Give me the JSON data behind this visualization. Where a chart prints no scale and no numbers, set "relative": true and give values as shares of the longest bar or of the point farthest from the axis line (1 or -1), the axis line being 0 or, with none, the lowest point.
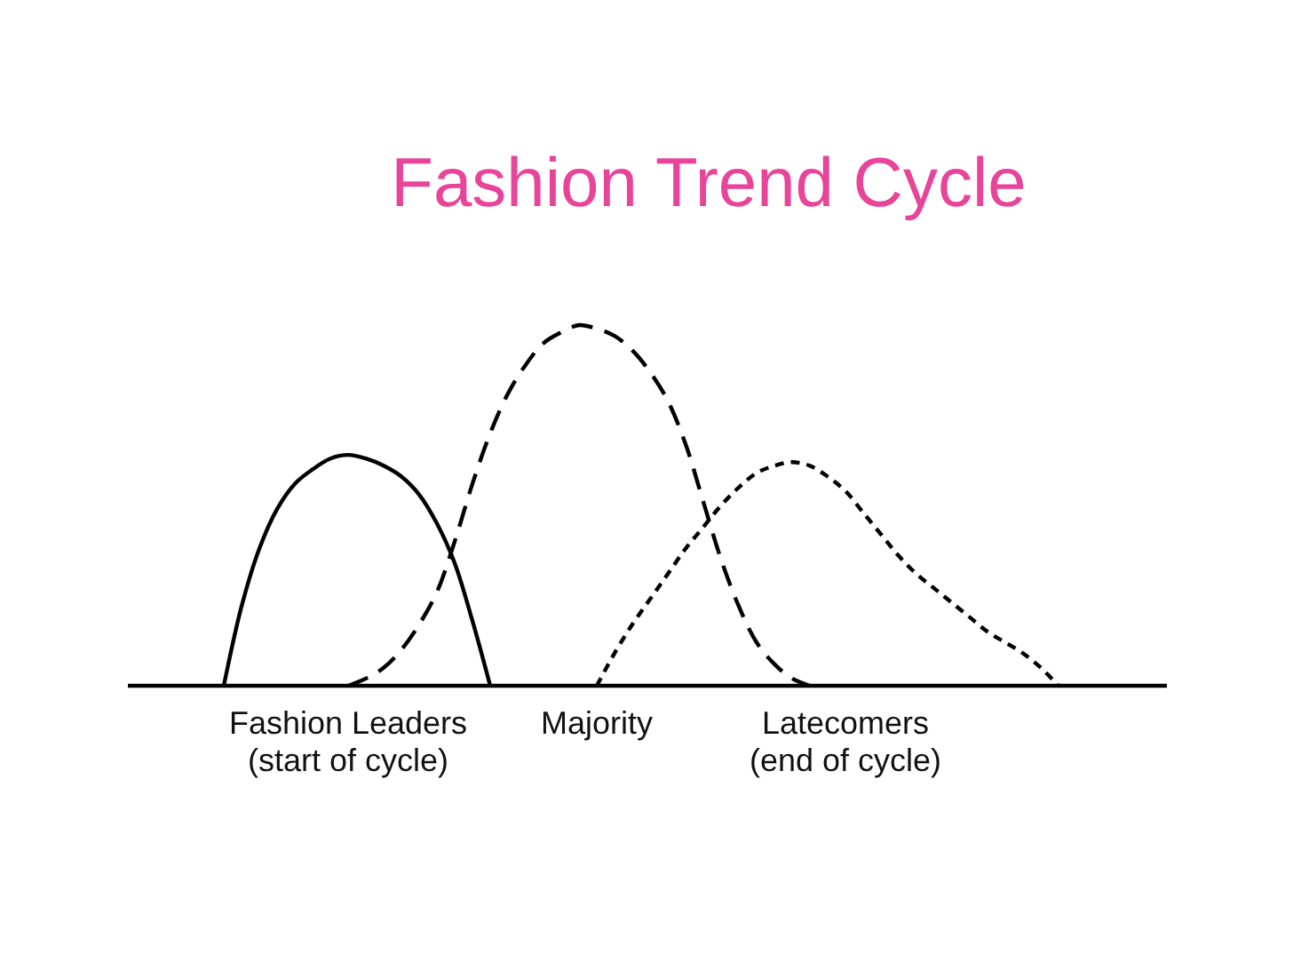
{
  "chart_data": {
    "type": "line",
    "title": "Fashion Trend Cycle",
    "relative": true,
    "categories": [
      null,
      null,
      null,
      null,
      null,
      null,
      null,
      null,
      null,
      null,
      null,
      null,
      "Fashion Leaders\n(start of cycle)",
      null,
      null,
      null,
      null,
      null,
      null,
      null,
      null,
      null,
      null,
      null,
      null,
      null,
      "Majority",
      null,
      null,
      null,
      null,
      null,
      null,
      null,
      null,
      null,
      null,
      null,
      null,
      null,
      "Latecomers\n(end of cycle)",
      null,
      null,
      null,
      null,
      null,
      null,
      null,
      null,
      null,
      null,
      null,
      null,
      null,
      null,
      null,
      null,
      null,
      null
    ],
    "series": [
      {
        "color": "#000000",
        "line_style": "solid",
        "values": [
          null,
          null,
          null,
          null,
          null,
          0,
          0.22,
          0.38,
          0.49,
          0.56,
          0.6,
          0.63,
          0.64,
          0.63,
          0.61,
          0.58,
          0.53,
          0.45,
          0.34,
          0.18,
          0,
          null,
          null,
          null,
          null,
          null,
          null,
          null,
          null,
          null,
          null,
          null,
          null,
          null,
          null,
          null,
          null,
          null,
          null,
          null,
          null,
          null,
          null,
          null,
          null,
          null,
          null,
          null,
          null,
          null,
          null,
          null,
          null,
          null,
          null,
          null,
          null,
          null,
          null
        ]
      },
      {
        "color": "#000000",
        "line_style": "dashed",
        "values": [
          null,
          null,
          null,
          null,
          null,
          null,
          null,
          null,
          null,
          null,
          null,
          null,
          0,
          0.02,
          0.05,
          0.1,
          0.17,
          0.26,
          0.4,
          0.56,
          0.7,
          0.81,
          0.89,
          0.95,
          0.98,
          1,
          0.99,
          0.97,
          0.93,
          0.87,
          0.79,
          0.67,
          0.51,
          0.35,
          0.22,
          0.12,
          0.06,
          0.02,
          0,
          null,
          null,
          null,
          null,
          null,
          null,
          null,
          null,
          null,
          null,
          null,
          null,
          null,
          null,
          null,
          null,
          null,
          null,
          null,
          null
        ]
      },
      {
        "color": "#000000",
        "line_style": "dotted",
        "values": [
          null,
          null,
          null,
          null,
          null,
          null,
          null,
          null,
          null,
          null,
          null,
          null,
          null,
          null,
          null,
          null,
          null,
          null,
          null,
          null,
          null,
          null,
          null,
          null,
          null,
          null,
          0,
          0.09,
          0.17,
          0.24,
          0.31,
          0.38,
          0.44,
          0.5,
          0.55,
          0.59,
          0.61,
          0.62,
          0.61,
          0.58,
          0.54,
          0.48,
          0.42,
          0.36,
          0.31,
          0.27,
          0.23,
          0.19,
          0.15,
          0.12,
          0.09,
          0.05,
          0,
          null,
          null,
          null,
          null,
          null,
          null
        ]
      }
    ]
  }
}
